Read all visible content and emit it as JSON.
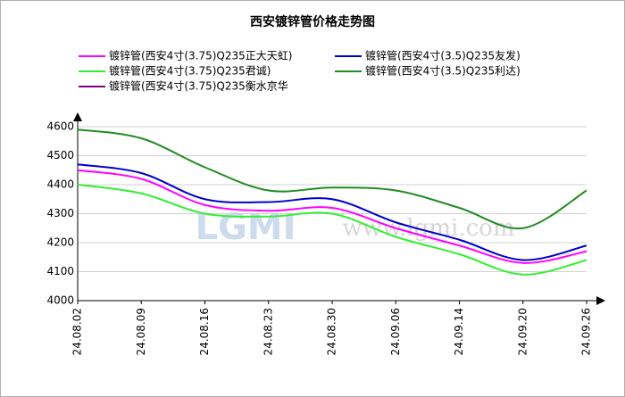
{
  "chart_data": {
    "type": "line",
    "title": "西安镀锌管价格走势图",
    "watermark": [
      "LGMI",
      "www.lgmi.com"
    ],
    "categories": [
      "24.08.02",
      "24.08.09",
      "24.08.16",
      "24.08.23",
      "24.08.30",
      "24.09.06",
      "24.09.14",
      "24.09.20",
      "24.09.26"
    ],
    "series": [
      {
        "name": "镀锌管(西安4寸(3.75)Q235正大天虹)",
        "color": "#ff00ff",
        "values": [
          4450,
          4420,
          4330,
          4310,
          4320,
          4250,
          4190,
          4130,
          4170
        ]
      },
      {
        "name": "镀锌管(西安4寸(3.5)Q235友发)",
        "color": "#0000cc",
        "values": [
          4470,
          4440,
          4350,
          4340,
          4350,
          4270,
          4210,
          4140,
          4190
        ]
      },
      {
        "name": "镀锌管(西安4寸(3.75)Q235君诚)",
        "color": "#33ee33",
        "values": [
          4400,
          4370,
          4300,
          4290,
          4300,
          4220,
          4160,
          4090,
          4140
        ]
      },
      {
        "name": "镀锌管(西安4寸(3.5)Q235利达)",
        "color": "#228b22",
        "values": [
          4590,
          4560,
          4460,
          4380,
          4390,
          4380,
          4320,
          4250,
          4380
        ]
      },
      {
        "name": "镀锌管(西安4寸(3.75)Q235衡水京华",
        "color": "#800080",
        "values": [
          null,
          null,
          null,
          null,
          null,
          null,
          null,
          null,
          null
        ]
      }
    ],
    "ylim": [
      4000,
      4600
    ],
    "yticks": [
      4000,
      4100,
      4200,
      4300,
      4400,
      4500,
      4600
    ],
    "grid": true
  }
}
